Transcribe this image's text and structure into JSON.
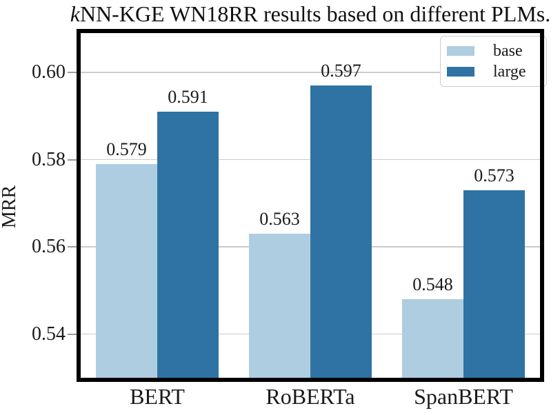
{
  "title": {
    "italic_prefix": "k",
    "rest": "NN-KGE WN18RR results based on different PLMs."
  },
  "chart_data": {
    "type": "bar",
    "title": "kNN-KGE WN18RR results based on different PLMs.",
    "categories": [
      "BERT",
      "RoBERTa",
      "SpanBERT"
    ],
    "series": [
      {
        "name": "base",
        "color": "#AECDE1",
        "values": [
          0.579,
          0.563,
          0.548
        ]
      },
      {
        "name": "large",
        "color": "#2E73A3",
        "values": [
          0.591,
          0.597,
          0.573
        ]
      }
    ],
    "value_labels": {
      "base": [
        "0.579",
        "0.563",
        "0.548"
      ],
      "large": [
        "0.591",
        "0.597",
        "0.573"
      ]
    },
    "xlabel": "",
    "ylabel": "MRR",
    "ylim": [
      0.53,
      0.609
    ],
    "yticks": [
      0.54,
      0.56,
      0.58,
      0.6
    ],
    "ytick_labels": [
      "0.54",
      "0.56",
      "0.58",
      "0.60"
    ],
    "grid": "horizontal",
    "legend_position": "upper right",
    "legend_entries": [
      "base",
      "large"
    ]
  },
  "colors": {
    "background": "#ffffff",
    "frame": "#000000",
    "gridline": "#cbcbcb",
    "tick": "#999999",
    "text": "#1a1a1a",
    "bar_base": "#AECDE1",
    "bar_large": "#2E73A3"
  }
}
